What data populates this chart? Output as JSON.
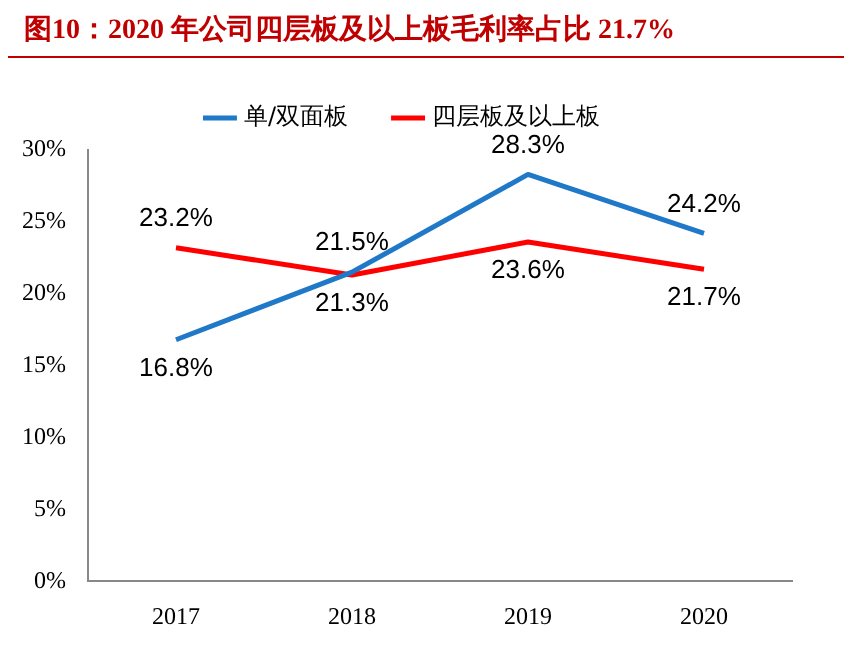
{
  "chart_data": {
    "type": "line",
    "title": "图10：2020 年公司四层板及以上板毛利率占比 21.7%",
    "categories": [
      "2017",
      "2018",
      "2019",
      "2020"
    ],
    "series": [
      {
        "name": "单/双面板",
        "color": "#1f78c8",
        "values": [
          16.8,
          21.5,
          28.3,
          24.2
        ],
        "value_labels": [
          "16.8%",
          "21.5%",
          "28.3%",
          "24.2%"
        ]
      },
      {
        "name": "四层板及以上板",
        "color": "#ff0000",
        "values": [
          23.2,
          21.3,
          23.6,
          21.7
        ],
        "value_labels": [
          "23.2%",
          "21.3%",
          "23.6%",
          "21.7%"
        ]
      }
    ],
    "ylim": [
      0,
      30
    ],
    "yticks": [
      {
        "value": 0,
        "label": "0%"
      },
      {
        "value": 5,
        "label": "5%"
      },
      {
        "value": 10,
        "label": "10%"
      },
      {
        "value": 15,
        "label": "15%"
      },
      {
        "value": 20,
        "label": "20%"
      },
      {
        "value": 25,
        "label": "25%"
      },
      {
        "value": 30,
        "label": "30%"
      }
    ],
    "grid": false,
    "legend": "top",
    "marker": "none",
    "line_style": "solid"
  }
}
